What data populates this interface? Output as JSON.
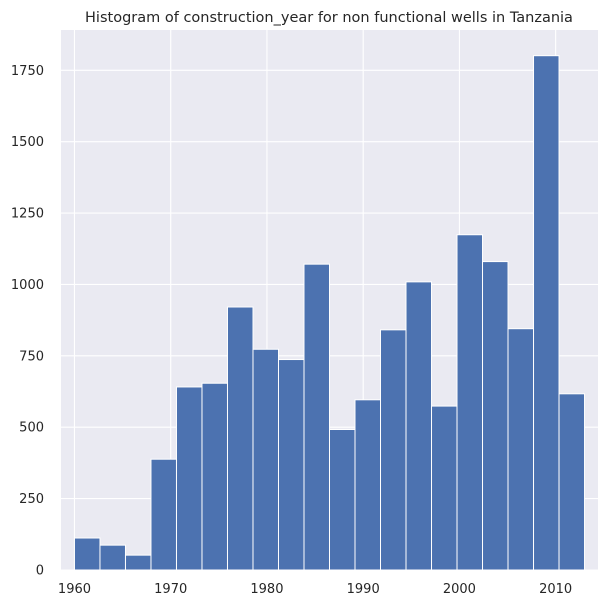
{
  "chart_data": {
    "type": "bar",
    "title": "Histogram of construction_year for non functional wells in Tanzania",
    "xlabel": "",
    "ylabel": "",
    "bin_edges": [
      1960,
      1962.65,
      1965.3,
      1967.95,
      1970.6,
      1973.25,
      1975.9,
      1978.55,
      1981.2,
      1983.85,
      1986.5,
      1989.15,
      1991.8,
      1994.45,
      1997.1,
      1999.75,
      2002.4,
      2005.05,
      2007.7,
      2010.35,
      2013
    ],
    "values": [
      112,
      87,
      52,
      388,
      641,
      654,
      921,
      773,
      737,
      1071,
      492,
      596,
      841,
      1009,
      574,
      1174,
      1080,
      845,
      1801,
      617
    ],
    "xlim": [
      1958.6,
      2014.4
    ],
    "ylim": [
      0,
      1891
    ],
    "x_ticks": [
      "1960",
      "1970",
      "1980",
      "1990",
      "2000",
      "2010"
    ],
    "y_ticks": [
      "0",
      "250",
      "500",
      "750",
      "1000",
      "1250",
      "1500",
      "1750"
    ],
    "grid": true,
    "bar_color": "#4c72b0",
    "background_color": "#eaeaf2",
    "grid_color": "#ffffff"
  }
}
